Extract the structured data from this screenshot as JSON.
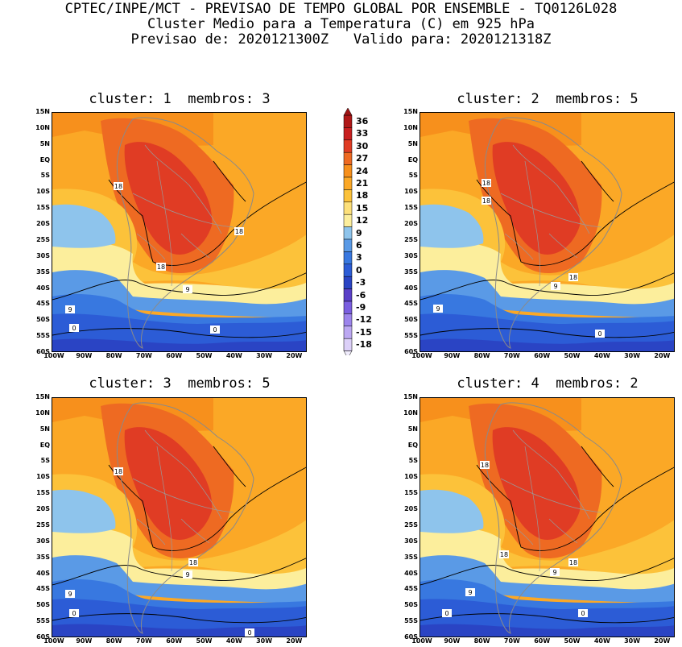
{
  "header": {
    "line1": "CPTEC/INPE/MCT - PREVISAO DE TEMPO GLOBAL POR ENSEMBLE - TQ0126L028",
    "line2": "Cluster Medio para a Temperatura (C) em 925 hPa",
    "line3": "Previsao de: 2020121300Z   Valido para: 2020121318Z"
  },
  "panels": [
    {
      "title": "cluster: 1  membros: 3",
      "contour_labels": [
        "18",
        "18",
        "18",
        "9",
        "9",
        "0",
        "0"
      ]
    },
    {
      "title": "cluster: 2  membros: 5",
      "contour_labels": [
        "18",
        "18",
        "18",
        "9",
        "9",
        "0"
      ]
    },
    {
      "title": "cluster: 3  membros: 5",
      "contour_labels": [
        "18",
        "18",
        "9",
        "9",
        "0",
        "0"
      ]
    },
    {
      "title": "cluster: 4  membros: 2",
      "contour_labels": [
        "18",
        "18",
        "18",
        "9",
        "9",
        "0",
        "0"
      ]
    }
  ],
  "lat_labels": [
    "15N",
    "10N",
    "5N",
    "EQ",
    "5S",
    "10S",
    "15S",
    "20S",
    "25S",
    "30S",
    "35S",
    "40S",
    "45S",
    "50S",
    "55S",
    "60S"
  ],
  "lon_labels": [
    "100W",
    "90W",
    "80W",
    "70W",
    "60W",
    "50W",
    "40W",
    "30W",
    "20W"
  ],
  "colorbar": {
    "labels": [
      "36",
      "33",
      "30",
      "27",
      "24",
      "21",
      "18",
      "15",
      "12",
      "9",
      "6",
      "3",
      "0",
      "-3",
      "-6",
      "-9",
      "-12",
      "-15",
      "-18"
    ],
    "colors": [
      "#b01818",
      "#c82020",
      "#e03c24",
      "#ee6a22",
      "#f7901c",
      "#fba826",
      "#fcc23a",
      "#fde07a",
      "#fcee9c",
      "#8ec4ec",
      "#5a9ae6",
      "#3878e0",
      "#2c5cd6",
      "#2a44c4",
      "#5a40c8",
      "#7a5ee0",
      "#9c84ec",
      "#bca8f2",
      "#dcd0f8"
    ]
  },
  "palette": {
    "deep_blue": "#2a44c4",
    "blue": "#2c5cd6",
    "mid_blue": "#3878e0",
    "light_blue": "#5a9ae6",
    "pale_blue": "#8ec4ec",
    "pale_yellow": "#fcee9c",
    "yellow": "#fde07a",
    "light_orange": "#fcc23a",
    "orange": "#fba826",
    "dark_orange": "#f7901c",
    "red_orange": "#ee6a22",
    "red": "#e03c24",
    "dark_red": "#c82020",
    "purple": "#5a40c8"
  }
}
